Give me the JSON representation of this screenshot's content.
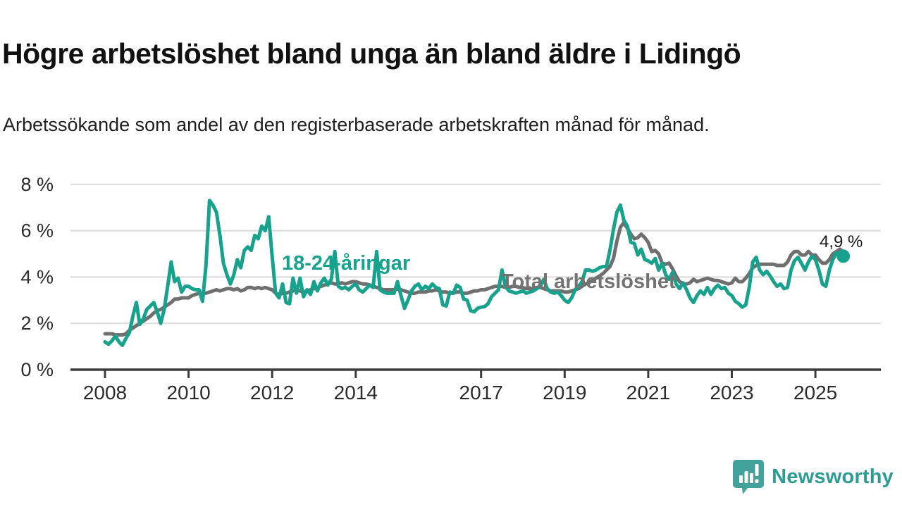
{
  "header": {
    "title": "Högre arbetslöshet bland unga än bland äldre i Lidingö",
    "subtitle": "Arbetssökande som andel av den registerbaserade arbetskraften månad för månad."
  },
  "annotation": {
    "last_value_label": "4,9 %"
  },
  "logo": {
    "brand": "Newsworthy",
    "icon": "bar-chart-speech-bubble-icon"
  },
  "colors": {
    "youth_line": "#17A28E",
    "total_line": "#6F6F6F",
    "total_label": "#737373",
    "gridline": "#DADADA",
    "axis": "#3C3C3C",
    "axis_text": "#2C2C2C",
    "annotation_text": "#1A1A1A",
    "logo_icon": "#42A39C",
    "logo_text": "#2D9C93"
  },
  "chart_data": {
    "type": "line",
    "title": "Högre arbetslöshet bland unga än bland äldre i Lidingö",
    "xlabel": "",
    "ylabel": "",
    "unit": "%",
    "x_start_year": 2008.0,
    "x_step_months": 1,
    "x_axis": {
      "tick_years": [
        2008,
        2010,
        2012,
        2014,
        2017,
        2019,
        2021,
        2023,
        2025
      ]
    },
    "y_axis": {
      "ticks": [
        0,
        2,
        4,
        6,
        8
      ],
      "tick_suffix": " %",
      "range": [
        0,
        8
      ],
      "grid": true
    },
    "legend_position": "inline-labels",
    "series": [
      {
        "name": "Total arbetslöshet",
        "color": "#6F6F6F",
        "end_dot": false,
        "values": [
          1.55,
          1.55,
          1.55,
          1.5,
          1.5,
          1.5,
          1.55,
          1.7,
          1.8,
          1.9,
          2.0,
          2.1,
          2.2,
          2.3,
          2.45,
          2.55,
          2.6,
          2.7,
          2.8,
          2.9,
          3.05,
          3.05,
          3.1,
          3.1,
          3.1,
          3.2,
          3.25,
          3.3,
          3.3,
          3.3,
          3.35,
          3.4,
          3.45,
          3.4,
          3.45,
          3.5,
          3.5,
          3.45,
          3.5,
          3.4,
          3.45,
          3.55,
          3.55,
          3.5,
          3.55,
          3.5,
          3.55,
          3.5,
          3.45,
          3.3,
          3.25,
          3.3,
          3.3,
          3.35,
          3.4,
          3.45,
          3.4,
          3.35,
          3.4,
          3.45,
          3.5,
          3.55,
          3.6,
          3.65,
          3.7,
          3.75,
          3.7,
          3.7,
          3.75,
          3.7,
          3.75,
          3.8,
          3.8,
          3.75,
          3.7,
          3.7,
          3.65,
          3.6,
          3.55,
          3.5,
          3.45,
          3.45,
          3.45,
          3.45,
          3.5,
          3.45,
          3.4,
          3.35,
          3.3,
          3.3,
          3.35,
          3.35,
          3.35,
          3.4,
          3.4,
          3.45,
          3.4,
          3.35,
          3.35,
          3.3,
          3.3,
          3.35,
          3.35,
          3.3,
          3.3,
          3.35,
          3.4,
          3.4,
          3.45,
          3.45,
          3.5,
          3.55,
          3.6,
          3.6,
          3.6,
          3.55,
          3.55,
          3.6,
          3.6,
          3.55,
          3.55,
          3.5,
          3.5,
          3.5,
          3.55,
          3.55,
          3.5,
          3.45,
          3.4,
          3.4,
          3.4,
          3.4,
          3.35,
          3.35,
          3.4,
          3.45,
          3.5,
          3.6,
          3.7,
          3.75,
          3.85,
          3.95,
          4.05,
          4.15,
          4.3,
          4.45,
          4.8,
          5.55,
          6.15,
          6.35,
          6.1,
          5.85,
          5.65,
          5.7,
          5.85,
          5.7,
          5.5,
          5.1,
          5.15,
          5.0,
          4.6,
          4.55,
          4.6,
          4.35,
          4.05,
          3.8,
          3.7,
          3.7,
          3.75,
          3.9,
          3.8,
          3.85,
          3.9,
          3.95,
          3.9,
          3.85,
          3.85,
          3.8,
          3.75,
          3.7,
          3.75,
          3.95,
          3.8,
          3.8,
          3.95,
          4.15,
          4.4,
          4.5,
          4.55,
          4.55,
          4.55,
          4.55,
          4.55,
          4.5,
          4.5,
          4.5,
          4.65,
          4.95,
          5.1,
          5.1,
          4.95,
          4.95,
          5.1,
          4.95,
          4.95,
          4.75,
          4.6,
          4.6,
          4.75,
          5.0,
          5.1,
          5.2,
          5.1
        ]
      },
      {
        "name": "18-24-åringar",
        "color": "#17A28E",
        "end_dot": true,
        "values": [
          1.2,
          1.1,
          1.25,
          1.45,
          1.2,
          1.05,
          1.35,
          1.6,
          2.3,
          2.9,
          1.95,
          2.2,
          2.6,
          2.75,
          2.9,
          2.5,
          2.0,
          2.6,
          3.6,
          4.65,
          3.8,
          3.95,
          3.35,
          3.6,
          3.6,
          3.5,
          3.45,
          3.45,
          2.95,
          4.5,
          7.3,
          7.1,
          6.8,
          5.8,
          4.6,
          4.1,
          3.7,
          4.1,
          4.75,
          4.4,
          5.15,
          5.3,
          5.15,
          5.8,
          5.65,
          6.2,
          6.0,
          6.6,
          4.9,
          3.3,
          3.1,
          3.7,
          2.9,
          2.85,
          3.95,
          3.3,
          3.95,
          3.15,
          3.45,
          3.25,
          3.8,
          3.4,
          3.75,
          3.95,
          3.65,
          3.9,
          5.1,
          3.6,
          3.5,
          3.55,
          3.45,
          3.6,
          3.7,
          3.45,
          3.35,
          3.5,
          3.65,
          3.55,
          5.1,
          3.45,
          3.35,
          3.3,
          3.3,
          3.3,
          3.8,
          3.2,
          2.65,
          3.0,
          3.4,
          3.6,
          3.7,
          3.45,
          3.6,
          3.5,
          3.7,
          3.55,
          3.5,
          2.8,
          2.75,
          3.35,
          3.3,
          3.65,
          3.55,
          3.05,
          3.0,
          2.55,
          2.5,
          2.65,
          2.7,
          2.72,
          2.85,
          3.15,
          3.3,
          3.45,
          4.3,
          3.6,
          3.4,
          3.35,
          3.3,
          3.35,
          3.4,
          3.3,
          3.35,
          3.4,
          3.5,
          3.6,
          3.9,
          3.5,
          3.35,
          3.3,
          3.35,
          3.2,
          3.0,
          2.9,
          3.1,
          3.45,
          3.6,
          3.8,
          4.3,
          4.3,
          4.25,
          4.3,
          4.4,
          4.45,
          4.45,
          5.15,
          6.05,
          6.8,
          7.1,
          6.45,
          6.2,
          5.5,
          5.45,
          4.95,
          5.2,
          4.75,
          4.7,
          4.6,
          4.8,
          4.3,
          4.6,
          4.1,
          3.9,
          4.2,
          3.7,
          3.5,
          3.75,
          3.45,
          3.1,
          2.9,
          3.2,
          3.4,
          3.25,
          3.55,
          3.25,
          3.5,
          3.65,
          3.5,
          3.55,
          3.3,
          3.2,
          2.95,
          2.85,
          2.7,
          2.8,
          3.55,
          4.65,
          4.85,
          4.3,
          4.1,
          4.25,
          4.05,
          3.8,
          3.6,
          3.7,
          3.5,
          3.55,
          4.3,
          4.7,
          4.85,
          4.6,
          4.3,
          4.65,
          4.9,
          4.75,
          4.3,
          3.7,
          3.6,
          4.3,
          4.75,
          5.05,
          4.95,
          4.9
        ]
      }
    ],
    "last_point": {
      "series": "18-24-åringar",
      "value": 4.9,
      "label": "4,9 %"
    }
  }
}
